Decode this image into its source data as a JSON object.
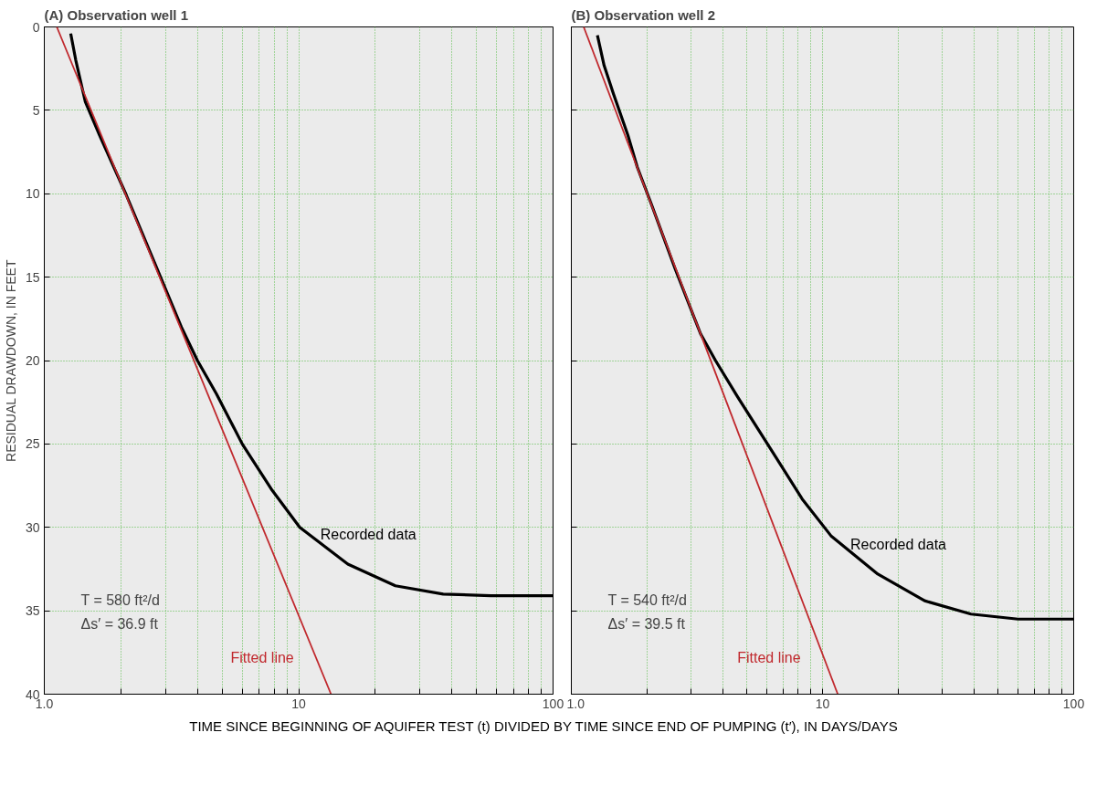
{
  "chart_data": [
    {
      "type": "line",
      "title": "(A) Observation well 1",
      "ylabel": "RESIDUAL DRAWDOWN, IN FEET",
      "xlabel": "TIME SINCE BEGINNING OF AQUIFER TEST (t) DIVIDED BY TIME SINCE END OF PUMPING (t′), IN DAYS/DAYS",
      "log": "x",
      "xlim": [
        1,
        100
      ],
      "ylim": [
        40,
        0
      ],
      "xticks": [
        {
          "value": 1,
          "label": "1.0"
        },
        {
          "value": 2,
          "label": null
        },
        {
          "value": 3,
          "label": null
        },
        {
          "value": 4,
          "label": null
        },
        {
          "value": 5,
          "label": null
        },
        {
          "value": 6,
          "label": null
        },
        {
          "value": 7,
          "label": null
        },
        {
          "value": 8,
          "label": null
        },
        {
          "value": 9,
          "label": null
        },
        10,
        {
          "value": 20,
          "label": null
        },
        {
          "value": 30,
          "label": null
        },
        {
          "value": 40,
          "label": null
        },
        {
          "value": 50,
          "label": null
        },
        {
          "value": 60,
          "label": null
        },
        {
          "value": 70,
          "label": null
        },
        {
          "value": 80,
          "label": null
        },
        {
          "value": 90,
          "label": null
        },
        100
      ],
      "yticks": [
        0,
        5,
        10,
        15,
        20,
        25,
        30,
        35,
        40
      ],
      "grid": true,
      "legend": false,
      "annotations": [
        "T = 580 ft²/d",
        "Δs′ = 36.9 ft"
      ],
      "series": [
        {
          "name": "Recorded data",
          "color": "#000000",
          "x": [
            1.27,
            1.33,
            1.45,
            1.65,
            1.85,
            2.09,
            2.69,
            3.46,
            4.0,
            4.75,
            6.0,
            7.8,
            10.1,
            15.6,
            24,
            37,
            57,
            100
          ],
          "values": [
            0.4,
            2,
            4.5,
            6.5,
            8.2,
            10,
            14,
            18,
            20,
            22,
            25,
            27.7,
            30,
            32.2,
            33.5,
            34.0,
            34.1,
            34.1
          ]
        },
        {
          "name": "Fitted line",
          "color": "#c0282d",
          "x": [
            1.12,
            13.4
          ],
          "values": [
            0,
            40
          ]
        }
      ]
    },
    {
      "type": "line",
      "title": "(B) Observation  well 2",
      "log": "x",
      "xlim": [
        1,
        100
      ],
      "ylim": [
        40,
        0
      ],
      "tick_labels": "x",
      "xticks": [
        {
          "value": 1,
          "label": "1.0"
        },
        {
          "value": 2,
          "label": null
        },
        {
          "value": 3,
          "label": null
        },
        {
          "value": 4,
          "label": null
        },
        {
          "value": 5,
          "label": null
        },
        {
          "value": 6,
          "label": null
        },
        {
          "value": 7,
          "label": null
        },
        {
          "value": 8,
          "label": null
        },
        {
          "value": 9,
          "label": null
        },
        10,
        {
          "value": 20,
          "label": null
        },
        {
          "value": 30,
          "label": null
        },
        {
          "value": 40,
          "label": null
        },
        {
          "value": 50,
          "label": null
        },
        {
          "value": 60,
          "label": null
        },
        {
          "value": 70,
          "label": null
        },
        {
          "value": 80,
          "label": null
        },
        {
          "value": 90,
          "label": null
        },
        100
      ],
      "yticks": [
        0,
        5,
        10,
        15,
        20,
        25,
        30,
        35,
        40
      ],
      "grid": true,
      "legend": false,
      "annotations": [
        "T = 540 ft²/d",
        "Δs′ = 39.5 ft"
      ],
      "series": [
        {
          "name": "Recorded data",
          "color": "#000000",
          "x": [
            1.27,
            1.35,
            1.47,
            1.68,
            1.83,
            2.08,
            2.59,
            3.27,
            3.75,
            4.6,
            6.4,
            8.3,
            10.8,
            16.6,
            25.5,
            39,
            60,
            100
          ],
          "values": [
            0.5,
            2.3,
            4,
            6.5,
            8.4,
            10.6,
            14.5,
            18.4,
            20,
            22.2,
            25.6,
            28.3,
            30.5,
            32.8,
            34.4,
            35.2,
            35.5,
            35.5
          ]
        },
        {
          "name": "Fitted line",
          "color": "#c0282d",
          "x": [
            1.12,
            11.5
          ],
          "values": [
            0,
            40
          ]
        }
      ]
    }
  ]
}
